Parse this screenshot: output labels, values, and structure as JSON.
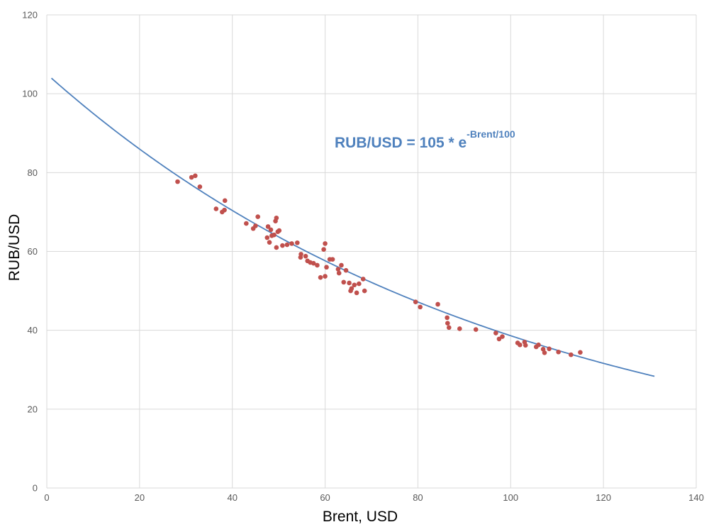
{
  "chart_data": {
    "type": "scatter",
    "xlabel": "Brent, USD",
    "ylabel": "RUB/USD",
    "xlim": [
      0,
      140
    ],
    "ylim": [
      0,
      120
    ],
    "x_ticks": [
      0,
      20,
      40,
      60,
      80,
      100,
      120,
      140
    ],
    "y_ticks": [
      0,
      20,
      40,
      60,
      80,
      100,
      120
    ],
    "grid": true,
    "colors": {
      "points": "#C0504D",
      "curve": "#4F81BD",
      "annotation": "#4F81BD",
      "grid": "#D9D9D9"
    },
    "annotation": {
      "base": "RUB/USD = 105 * e",
      "superscript": "-Brent/100"
    },
    "fit_curve": {
      "formula": "105 * exp(-x/100)",
      "a": 105,
      "k": 100,
      "x_range": [
        1,
        131
      ]
    },
    "series": [
      {
        "type": "scatter",
        "points": [
          [
            28.2,
            77.7
          ],
          [
            31.2,
            78.8
          ],
          [
            32.0,
            79.2
          ],
          [
            33.0,
            76.4
          ],
          [
            36.5,
            70.8
          ],
          [
            37.8,
            70.0
          ],
          [
            38.3,
            70.5
          ],
          [
            38.4,
            72.9
          ],
          [
            43.0,
            67.1
          ],
          [
            44.5,
            65.8
          ],
          [
            45.0,
            66.5
          ],
          [
            45.5,
            68.8
          ],
          [
            47.5,
            63.5
          ],
          [
            47.7,
            66.3
          ],
          [
            48.0,
            62.3
          ],
          [
            48.3,
            65.5
          ],
          [
            48.5,
            64.0
          ],
          [
            49.0,
            64.2
          ],
          [
            49.3,
            67.7
          ],
          [
            49.5,
            68.5
          ],
          [
            49.5,
            61.0
          ],
          [
            49.8,
            65.0
          ],
          [
            50.1,
            65.3
          ],
          [
            50.8,
            61.5
          ],
          [
            51.8,
            61.7
          ],
          [
            52.8,
            62.0
          ],
          [
            54.0,
            62.2
          ],
          [
            54.7,
            58.5
          ],
          [
            54.8,
            59.3
          ],
          [
            55.8,
            58.8
          ],
          [
            56.2,
            57.6
          ],
          [
            56.8,
            57.2
          ],
          [
            57.5,
            57.0
          ],
          [
            58.3,
            56.5
          ],
          [
            59.0,
            53.4
          ],
          [
            59.7,
            60.5
          ],
          [
            60.0,
            62.0
          ],
          [
            60.0,
            53.7
          ],
          [
            60.3,
            56.0
          ],
          [
            61.0,
            58.0
          ],
          [
            61.6,
            58.0
          ],
          [
            62.8,
            55.5
          ],
          [
            63.0,
            54.5
          ],
          [
            63.5,
            56.5
          ],
          [
            64.0,
            52.2
          ],
          [
            64.5,
            55.2
          ],
          [
            65.2,
            52.0
          ],
          [
            65.5,
            50.0
          ],
          [
            65.7,
            50.6
          ],
          [
            66.3,
            51.5
          ],
          [
            66.8,
            49.5
          ],
          [
            67.3,
            51.8
          ],
          [
            68.2,
            53.0
          ],
          [
            68.5,
            50.0
          ],
          [
            79.5,
            47.2
          ],
          [
            80.5,
            45.9
          ],
          [
            84.3,
            46.6
          ],
          [
            86.3,
            43.2
          ],
          [
            86.4,
            41.8
          ],
          [
            86.7,
            40.7
          ],
          [
            89.0,
            40.4
          ],
          [
            92.5,
            40.2
          ],
          [
            96.8,
            39.3
          ],
          [
            97.5,
            37.8
          ],
          [
            98.2,
            38.4
          ],
          [
            101.5,
            36.8
          ],
          [
            102.0,
            36.3
          ],
          [
            103.0,
            37.0
          ],
          [
            103.2,
            36.2
          ],
          [
            105.5,
            35.8
          ],
          [
            106.0,
            36.3
          ],
          [
            107.0,
            35.2
          ],
          [
            107.3,
            34.3
          ],
          [
            108.3,
            35.3
          ],
          [
            110.3,
            34.5
          ],
          [
            113.0,
            33.8
          ],
          [
            115.0,
            34.4
          ]
        ]
      }
    ]
  }
}
